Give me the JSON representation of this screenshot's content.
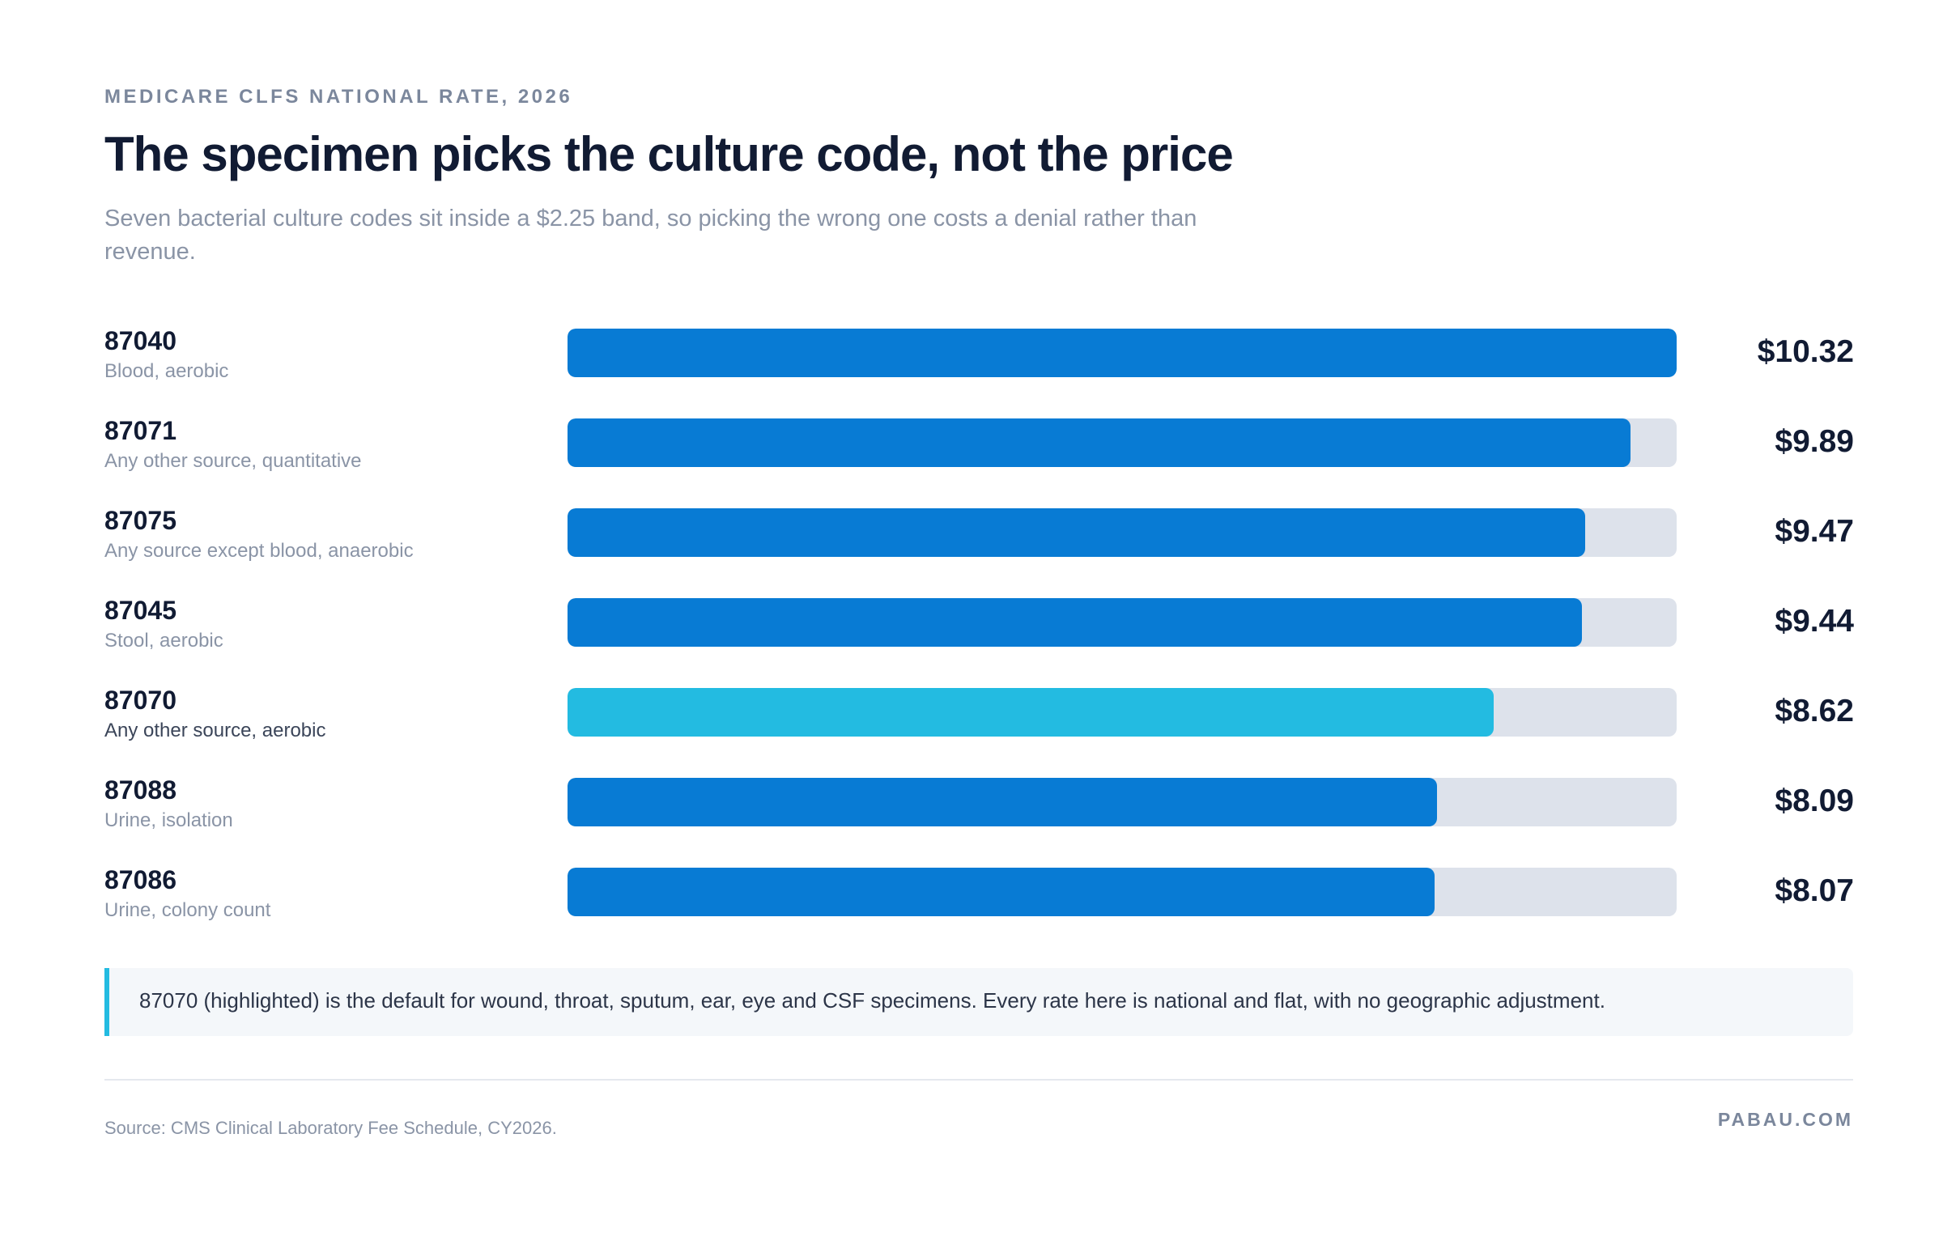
{
  "eyebrow": "MEDICARE CLFS NATIONAL RATE, 2026",
  "brand": "PABAU.COM",
  "note": "87070 (highlighted) is the default for wound, throat, sputum, ear, eye and CSF specimens. Every rate here is national and flat, with no geographic adjustment.",
  "source": "Source: CMS Clinical Laboratory Fee Schedule, CY2026.",
  "colors": {
    "bar": "#087bd4",
    "highlight": "#23bbe1",
    "track": "#dde2eb",
    "text": "#111b33",
    "muted": "#8a94a6"
  },
  "chart_data": {
    "type": "bar",
    "orientation": "horizontal",
    "title": "The specimen picks the culture code, not the price",
    "subtitle": "Seven bacterial culture codes sit inside a $2.25 band, so picking the wrong one costs a denial rather than revenue.",
    "categories": [
      "87040",
      "87071",
      "87075",
      "87045",
      "87070",
      "87088",
      "87086"
    ],
    "descriptions": [
      "Blood, aerobic",
      "Any other source, quantitative",
      "Any source except blood, anaerobic",
      "Stool, aerobic",
      "Any other source, aerobic",
      "Urine, isolation",
      "Urine, colony count"
    ],
    "values": [
      10.32,
      9.89,
      9.47,
      9.44,
      8.62,
      8.09,
      8.07
    ],
    "value_labels": [
      "$10.32",
      "$9.89",
      "$9.47",
      "$9.44",
      "$8.62",
      "$8.09",
      "$8.07"
    ],
    "highlight": "87070",
    "xlim": [
      0,
      10.32
    ],
    "grid": false,
    "legend": "none"
  }
}
